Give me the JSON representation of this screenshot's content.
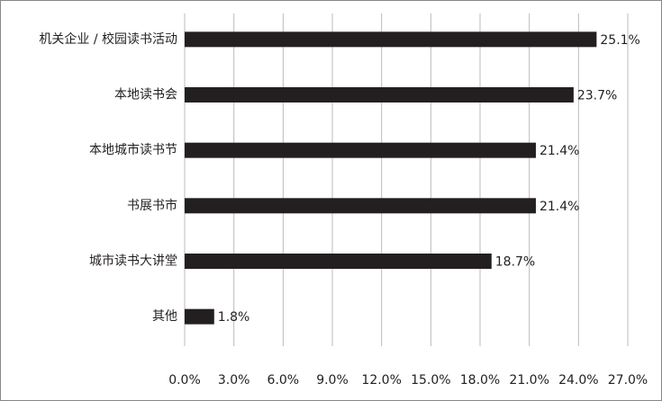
{
  "chart_data": {
    "type": "bar",
    "orientation": "horizontal",
    "categories": [
      "机关企业 / 校园读书活动",
      "本地读书会",
      "本地城市读书节",
      "书展书市",
      "城市读书大讲堂",
      "其他"
    ],
    "values": [
      25.1,
      23.7,
      21.4,
      21.4,
      18.7,
      1.8
    ],
    "value_labels": [
      "25.1%",
      "23.7%",
      "21.4%",
      "21.4%",
      "18.7%",
      "1.8%"
    ],
    "color": "#231f20",
    "xlim": [
      0,
      27
    ],
    "xticks": [
      {
        "value": 0,
        "label": "0.0%"
      },
      {
        "value": 3,
        "label": "3.0%"
      },
      {
        "value": 6,
        "label": "6.0%"
      },
      {
        "value": 9,
        "label": "9.0%"
      },
      {
        "value": 12,
        "label": "12.0%"
      },
      {
        "value": 15,
        "label": "15.0%"
      },
      {
        "value": 18,
        "label": "18.0%"
      },
      {
        "value": 21,
        "label": "21.0%"
      },
      {
        "value": 24,
        "label": "24.0%"
      },
      {
        "value": 27,
        "label": "27.0%"
      }
    ],
    "grid": true
  }
}
